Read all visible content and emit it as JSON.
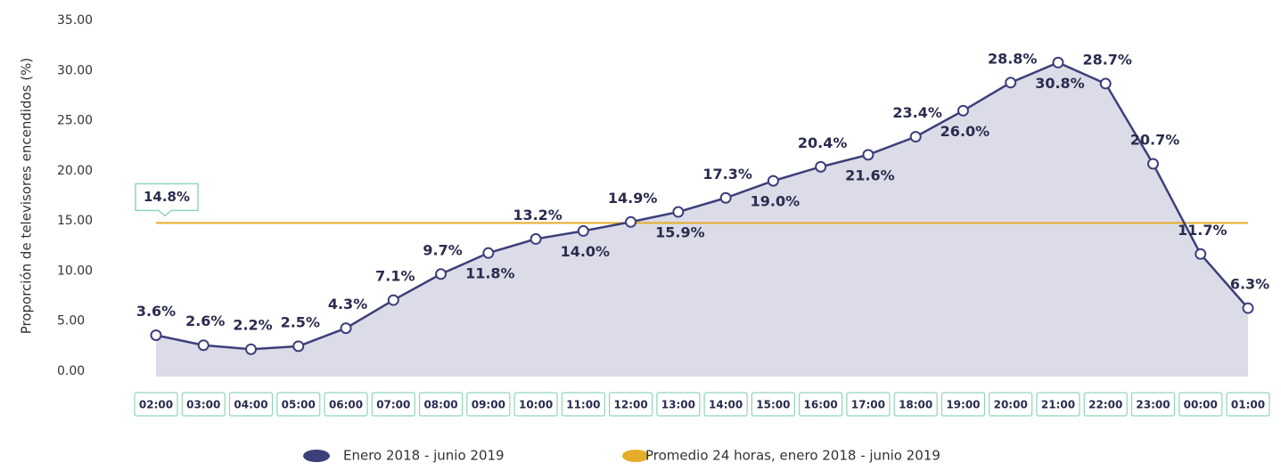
{
  "chart_data": {
    "type": "line",
    "y_label": "Proporción de televisores encendidos (%)",
    "categories": [
      "02:00",
      "03:00",
      "04:00",
      "05:00",
      "06:00",
      "07:00",
      "08:00",
      "09:00",
      "10:00",
      "11:00",
      "12:00",
      "13:00",
      "14:00",
      "15:00",
      "16:00",
      "17:00",
      "18:00",
      "19:00",
      "20:00",
      "21:00",
      "22:00",
      "23:00",
      "00:00",
      "01:00"
    ],
    "series": [
      {
        "name": "Enero 2018 - junio 2019",
        "color": "#3d3f7a",
        "fill": "#dcdce8",
        "values": [
          3.6,
          2.6,
          2.2,
          2.5,
          4.3,
          7.1,
          9.7,
          11.8,
          13.2,
          14.0,
          14.9,
          15.9,
          17.3,
          19.0,
          20.4,
          21.6,
          23.4,
          26.0,
          28.8,
          30.8,
          28.7,
          20.7,
          11.7,
          6.3
        ],
        "value_labels": [
          "3.6%",
          "2.6%",
          "2.2%",
          "2.5%",
          "4.3%",
          "7.1%",
          "9.7%",
          "11.8%",
          "13.2%",
          "14.0%",
          "14.9%",
          "15.9%",
          "17.3%",
          "19.0%",
          "20.4%",
          "21.6%",
          "23.4%",
          "26.0%",
          "28.8%",
          "30.8%",
          "28.7%",
          "20.7%",
          "11.7%",
          "6.3%"
        ]
      },
      {
        "name": "Promedio 24 horas, enero 2018 - junio 2019",
        "color": "#e5ad2a",
        "value": 14.8,
        "value_label": "14.8%"
      }
    ],
    "ylim": [
      0,
      35
    ],
    "yticks": [
      {
        "value": 0,
        "label": "0.00"
      },
      {
        "value": 5,
        "label": "5.00"
      },
      {
        "value": 10,
        "label": "10.00"
      },
      {
        "value": 15,
        "label": "15.00"
      },
      {
        "value": 20,
        "label": "20.00"
      },
      {
        "value": 25,
        "label": "25.00"
      },
      {
        "value": 30,
        "label": "30.00"
      },
      {
        "value": 35,
        "label": "35.00"
      }
    ]
  }
}
